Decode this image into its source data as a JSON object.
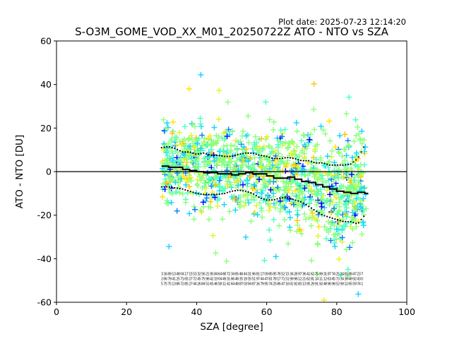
{
  "plot_date": "Plot date: 2025-07-23 12:14:20",
  "chart_data": {
    "type": "scatter",
    "title": "S-O3M_GOME_VOD_XX_M01_20250722Z ATO - NTO vs SZA",
    "xlabel": "SZA [degree]",
    "ylabel": "ATO - NTO [DU]",
    "xlim": [
      0,
      100
    ],
    "ylim": [
      -60,
      60
    ],
    "xticks": [
      0,
      20,
      40,
      60,
      80,
      100
    ],
    "yticks": [
      -60,
      -40,
      -20,
      0,
      20,
      40,
      60
    ],
    "grid": false,
    "legend": "none",
    "reference_line_y": 0,
    "point_cloud": {
      "sza_range": [
        30,
        88.5
      ],
      "upper_envelope": [
        [
          30,
          28
        ],
        [
          40,
          28
        ],
        [
          50,
          27
        ],
        [
          60,
          27
        ],
        [
          70,
          26
        ],
        [
          80,
          24
        ],
        [
          88,
          24
        ]
      ],
      "lower_envelope": [
        [
          30,
          -20
        ],
        [
          40,
          -22
        ],
        [
          50,
          -25
        ],
        [
          60,
          -28
        ],
        [
          70,
          -34
        ],
        [
          80,
          -42
        ],
        [
          88,
          -40
        ]
      ],
      "marker": "+",
      "colors": [
        "#0000ff",
        "#0a7bff",
        "#13d2ff",
        "#49ffc2",
        "#8cff7a",
        "#e0f523",
        "#ffc200",
        "#ffe400"
      ]
    },
    "series": [
      {
        "x": [
          30,
          32,
          34,
          36,
          38,
          40,
          42,
          44,
          46,
          48,
          50,
          52,
          54,
          56,
          58,
          60,
          62,
          64,
          66,
          68,
          70,
          72,
          74,
          76,
          78,
          80,
          82,
          84,
          86,
          88
        ],
        "values": [
          2.5,
          2,
          2,
          1,
          0.5,
          0,
          -0.5,
          -0.5,
          -1,
          -1,
          -1.5,
          -1,
          -0.5,
          -1,
          -1,
          -2,
          -3,
          -3,
          -2.5,
          -3.5,
          -4.5,
          -5,
          -6,
          -7,
          -8,
          -9,
          -9.5,
          -10,
          -9.5,
          -10
        ]
      },
      {
        "x": [
          30,
          32,
          34,
          36,
          38,
          40,
          42,
          44,
          46,
          48,
          50,
          52,
          54,
          56,
          58,
          60,
          62,
          64,
          66,
          68,
          70,
          72,
          74,
          76,
          78,
          80,
          82,
          84,
          86,
          88
        ],
        "values": [
          11,
          11.5,
          10.5,
          9,
          9,
          8,
          8.5,
          7.5,
          7.5,
          7,
          7,
          8,
          8.5,
          8.5,
          7.5,
          7,
          6,
          6,
          6.5,
          6,
          5,
          5,
          4,
          4,
          3,
          3,
          3,
          3.5,
          6,
          12
        ]
      },
      {
        "x": [
          30,
          32,
          34,
          36,
          38,
          40,
          42,
          44,
          46,
          48,
          50,
          52,
          54,
          56,
          58,
          60,
          62,
          64,
          66,
          68,
          70,
          72,
          74,
          76,
          78,
          80,
          82,
          84,
          86,
          88
        ],
        "values": [
          -7,
          -7,
          -7.5,
          -8,
          -9,
          -10,
          -10.5,
          -10.5,
          -10.5,
          -10,
          -9,
          -8.5,
          -9,
          -10,
          -12,
          -13,
          -13,
          -12,
          -12,
          -13,
          -14,
          -16,
          -18,
          -20,
          -21,
          -22,
          -23,
          -23,
          -24,
          -20
        ]
      }
    ],
    "count_annotation_y": -52
  }
}
